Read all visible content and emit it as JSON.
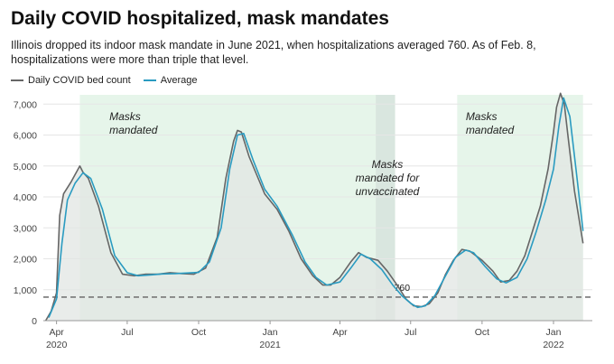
{
  "title": "Daily COVID hospitalized, mask mandates",
  "subtitle": "Illinois dropped its indoor mask mandate in June 2021, when hospitalizations averaged 760. As of Feb. 8, hospitalizations were more than triple that level.",
  "colors": {
    "daily": "#666666",
    "average": "#2a9bc1",
    "area": "#e2e6e3",
    "mandate": "#e6f5ea",
    "mandate_unvax": "#d9e6df",
    "grid": "#e6e6e6",
    "reference": "#777777"
  },
  "chart_data": {
    "type": "line",
    "title": "Daily COVID hospitalized, mask mandates",
    "xlabel": "",
    "ylabel": "",
    "xlim": [
      "2020-03-15",
      "2022-02-20"
    ],
    "ylim": [
      0,
      7300
    ],
    "yticks": [
      0,
      1000,
      2000,
      3000,
      4000,
      5000,
      6000,
      7000
    ],
    "ytick_labels": [
      "0",
      "1,000",
      "2,000",
      "3,000",
      "4,000",
      "5,000",
      "6,000",
      "7,000"
    ],
    "xticks": [
      {
        "date": "2020-04-01",
        "label": "Apr",
        "year": "2020"
      },
      {
        "date": "2020-07-01",
        "label": "Jul",
        "year": ""
      },
      {
        "date": "2020-10-01",
        "label": "Oct",
        "year": ""
      },
      {
        "date": "2021-01-01",
        "label": "Jan",
        "year": "2021"
      },
      {
        "date": "2021-04-01",
        "label": "Apr",
        "year": ""
      },
      {
        "date": "2021-07-01",
        "label": "Jul",
        "year": ""
      },
      {
        "date": "2021-10-01",
        "label": "Oct",
        "year": ""
      },
      {
        "date": "2022-01-01",
        "label": "Jan",
        "year": "2022"
      }
    ],
    "grid": true,
    "legend_position": "top-left",
    "reference_line": {
      "value": 760,
      "label": "760"
    },
    "shaded_periods": [
      {
        "start": "2020-05-01",
        "end": "2021-05-17",
        "label": [
          "Masks",
          "mandated"
        ],
        "kind": "all"
      },
      {
        "start": "2021-05-17",
        "end": "2021-06-11",
        "label": [
          "Masks",
          "mandated for",
          "unvaccinated"
        ],
        "kind": "unvaccinated"
      },
      {
        "start": "2021-08-30",
        "end": "2022-02-08",
        "label": [
          "Masks",
          "mandated"
        ],
        "kind": "all"
      }
    ],
    "series": [
      {
        "name": "Daily COVID bed count",
        "x": [
          "2020-03-18",
          "2020-03-25",
          "2020-04-01",
          "2020-04-05",
          "2020-04-10",
          "2020-04-20",
          "2020-05-01",
          "2020-05-05",
          "2020-05-12",
          "2020-05-25",
          "2020-06-10",
          "2020-06-25",
          "2020-07-10",
          "2020-07-25",
          "2020-08-10",
          "2020-08-25",
          "2020-09-10",
          "2020-09-25",
          "2020-10-10",
          "2020-10-25",
          "2020-11-05",
          "2020-11-15",
          "2020-11-20",
          "2020-11-25",
          "2020-12-05",
          "2020-12-15",
          "2020-12-25",
          "2021-01-10",
          "2021-01-25",
          "2021-02-10",
          "2021-02-25",
          "2021-03-10",
          "2021-03-20",
          "2021-04-01",
          "2021-04-15",
          "2021-04-25",
          "2021-05-05",
          "2021-05-20",
          "2021-06-01",
          "2021-06-15",
          "2021-06-25",
          "2021-07-05",
          "2021-07-15",
          "2021-07-25",
          "2021-08-05",
          "2021-08-15",
          "2021-08-25",
          "2021-09-05",
          "2021-09-15",
          "2021-10-01",
          "2021-10-15",
          "2021-10-25",
          "2021-11-05",
          "2021-11-15",
          "2021-11-25",
          "2021-12-05",
          "2021-12-15",
          "2021-12-25",
          "2022-01-01",
          "2022-01-05",
          "2022-01-10",
          "2022-01-15",
          "2022-01-20",
          "2022-01-28",
          "2022-02-08"
        ],
        "values": [
          0,
          300,
          900,
          3400,
          4100,
          4500,
          5000,
          4800,
          4600,
          3700,
          2200,
          1500,
          1450,
          1500,
          1500,
          1550,
          1520,
          1500,
          1700,
          2700,
          4600,
          5800,
          6150,
          6100,
          5300,
          4700,
          4100,
          3600,
          2900,
          2000,
          1450,
          1150,
          1150,
          1400,
          1900,
          2200,
          2050,
          1950,
          1600,
          1100,
          700,
          480,
          450,
          550,
          900,
          1500,
          1950,
          2300,
          2250,
          1950,
          1600,
          1250,
          1300,
          1600,
          2100,
          2900,
          3700,
          4900,
          6100,
          6900,
          7350,
          7000,
          5900,
          4200,
          2500
        ]
      },
      {
        "name": "Average",
        "x": [
          "2020-03-22",
          "2020-04-01",
          "2020-04-08",
          "2020-04-15",
          "2020-04-25",
          "2020-05-05",
          "2020-05-15",
          "2020-05-30",
          "2020-06-15",
          "2020-07-01",
          "2020-07-15",
          "2020-08-01",
          "2020-08-15",
          "2020-09-01",
          "2020-09-15",
          "2020-10-01",
          "2020-10-15",
          "2020-10-30",
          "2020-11-10",
          "2020-11-20",
          "2020-11-28",
          "2020-12-10",
          "2020-12-25",
          "2021-01-10",
          "2021-01-30",
          "2021-02-15",
          "2021-03-01",
          "2021-03-15",
          "2021-04-01",
          "2021-04-15",
          "2021-04-28",
          "2021-05-10",
          "2021-05-25",
          "2021-06-08",
          "2021-06-20",
          "2021-07-01",
          "2021-07-10",
          "2021-07-20",
          "2021-08-01",
          "2021-08-15",
          "2021-08-28",
          "2021-09-10",
          "2021-09-20",
          "2021-10-05",
          "2021-10-20",
          "2021-11-01",
          "2021-11-15",
          "2021-11-28",
          "2021-12-10",
          "2021-12-22",
          "2022-01-01",
          "2022-01-08",
          "2022-01-14",
          "2022-01-22",
          "2022-01-30",
          "2022-02-08"
        ],
        "values": [
          100,
          700,
          2500,
          3900,
          4450,
          4780,
          4600,
          3600,
          2100,
          1550,
          1450,
          1480,
          1510,
          1520,
          1540,
          1560,
          1900,
          3000,
          4900,
          6000,
          6050,
          5200,
          4250,
          3700,
          2750,
          1900,
          1400,
          1150,
          1250,
          1700,
          2150,
          2000,
          1650,
          1150,
          800,
          560,
          430,
          480,
          800,
          1450,
          2050,
          2280,
          2200,
          1750,
          1350,
          1220,
          1400,
          2000,
          2900,
          3900,
          4900,
          6300,
          7200,
          6600,
          4900,
          2900
        ]
      }
    ]
  }
}
